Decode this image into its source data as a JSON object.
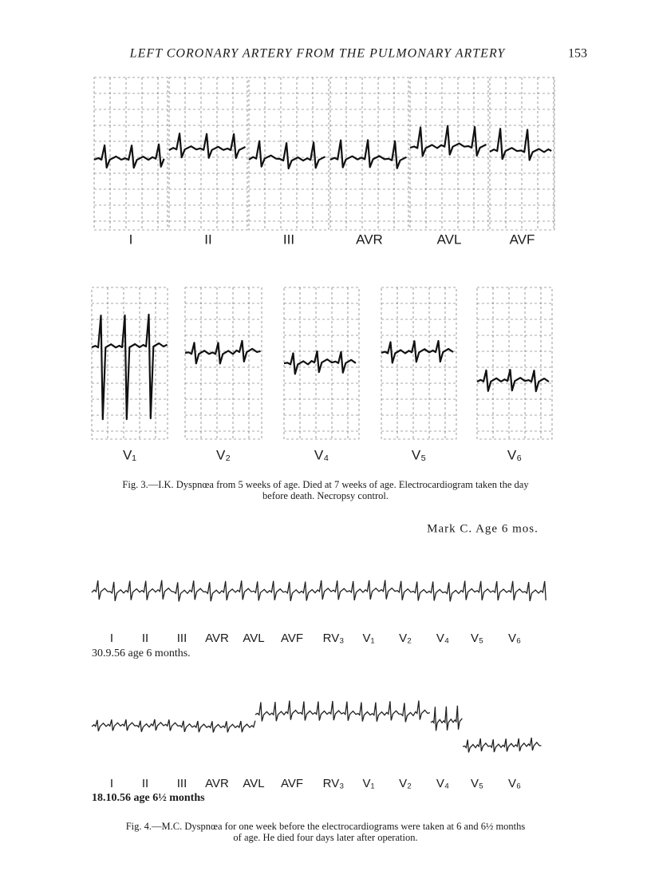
{
  "header": {
    "title": "LEFT CORONARY ARTERY FROM THE PULMONARY ARTERY",
    "page": "153"
  },
  "figure3": {
    "row1": [
      "I",
      "II",
      "III",
      "AVR",
      "AVL",
      "AVF"
    ],
    "row2": [
      "V₁",
      "V₂",
      "V₄",
      "V₅",
      "V₆"
    ],
    "caption": [
      "Fig. 3.—I.K. Dyspnœa from 5 weeks of age.  Died at 7 weeks of age.  Electrocardiogram taken the day",
      "before death.  Necropsy control."
    ]
  },
  "figure4": {
    "label": "Mark C. Age 6 mos.",
    "strips": [
      {
        "leads": [
          "I",
          "II",
          "III",
          "AVR",
          "AVL",
          "AVF",
          "RV₃",
          "V₁",
          "V₂",
          "V₄",
          "V₅",
          "V₆"
        ],
        "date": "30.9.56 age 6 months."
      },
      {
        "leads": [
          "I",
          "II",
          "III",
          "AVR",
          "AVL",
          "AVF",
          "RV₃",
          "V₁",
          "V₂",
          "V₄",
          "V₅",
          "V₆"
        ],
        "date": "18.10.56 age 6½ months"
      }
    ],
    "caption": [
      "Fig. 4.—M.C. Dyspnœa for one week before the electrocardiograms were taken at 6 and 6½ months",
      "of age. He died four days later after operation."
    ]
  }
}
